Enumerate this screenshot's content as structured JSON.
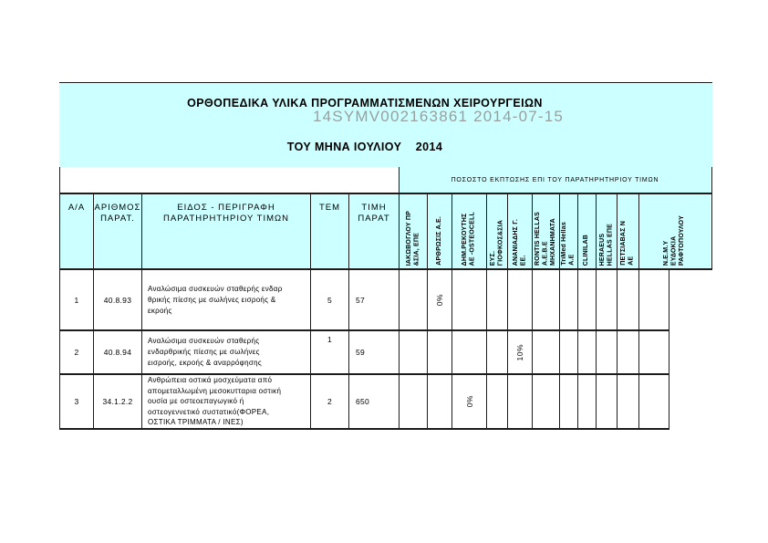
{
  "page": {
    "title_line1": "ΟΡΘΟΠΕΔΙΚΑ ΥΛΙΚΑ ΠΡΟΓΡΑΜΜΑΤΙΣΜΕΝΩΝ ΧΕΙΡΟΥΡΓΕΙΩΝ",
    "title_line2": "ΤΟΥ ΜΗΝΑ ΙΟΥΛΙΟΥ    2014",
    "watermark": "14SYMV002163861 2014-07-15"
  },
  "banner": {
    "discount_header": "ΠΟΣΟΣΤΟ ΕΚΠΤΩΣΗΣ ΕΠΙ ΤΟΥ ΠΑΡΑΤΗΡΗΤΗΡΙΟΥ ΤΙΜΩΝ"
  },
  "columns": {
    "aa": "Α/Α",
    "code": "ΑΡΙΘΜΟΣ\nΠΑΡΑΤ.",
    "item": "ΕΙΔΟΣ - ΠΕΡΙΓΡΑΦΗ\nΠΑΡΑΤΗΡΗΤΗΡΙΟΥ ΤΙΜΩΝ",
    "qty": "ΤΕΜ",
    "price": "ΤΙΜΗ\nΠΑΡΑΤ"
  },
  "suppliers": [
    "ΙΑΚΩΒΟΓΛΟΥ ΠΡ\n&ΣΙΑ, ΕΠΕ",
    "ΑΡΘΡΩΣΙΣ Α.Ε.",
    "ΔΗΜ.ΡΕΚΟΥΤΗΣ\nΑΕ -OSTEOCELL",
    "ΕΥΣ.\nΓΙΟΦΚΟΣ&ΣΙΑ",
    "ΑΝΑΝΙΑΔΗΣ Γ.\nΕΕ.",
    "RONTIS HELLAS\nΑ.Ε.Β.Ε\nΜΗΧΑΝΗΜΑΤΑ",
    "TriMed Hellas\nΑ.Ε",
    "CLINILAB",
    "HERAEUS\nHELLAS ΕΠΕ",
    "ΠΕΤΣΙΑΒΑΣ Ν\nΑΕ",
    "Ν.Ε.Μ.Υ\nΕΥΔΟΚΙΑ\nΡΑΦΤΟΠΟΥΛΟΥ"
  ],
  "rows": [
    {
      "aa": "1",
      "code": "40.8.93",
      "desc": "Αναλώσιμα συσκευών σταθερής ενδαρ\nθρικής πίεσης με σωλήνες εισροής &\nεκροής",
      "qty": "5",
      "price": "57",
      "discounts": {
        "c2": "0%"
      }
    },
    {
      "aa": "2",
      "code": "40.8.94",
      "desc": "Αναλώσιμα συσκευών σταθερής\nενδαρθρικής πίεσης με σωλήνες\nεισροής, εκροής & αναρρόφησης",
      "qty": "1",
      "price": "59",
      "discounts": {
        "c5": "10%"
      }
    },
    {
      "aa": "3",
      "code": "34.1.2.2",
      "desc": "Ανθρώπεια οστικά μοσχεύματα από\nαπομεταλλωμένη μεσοκυτταρια οστική\nουσία με οστεοεπαγωγικό ή\nοστεογεννετικό συστατικό(ΦΟΡΕΑ,\nΟΣΤΙΚΑ ΤΡΙΜΜΑΤΑ / ΙΝΕΣ)",
      "qty": "2",
      "price": "650",
      "discounts": {
        "c3": "0%"
      }
    }
  ],
  "colors": {
    "header_bg": "#ccffff",
    "grid_line": "#1c1c1c",
    "watermark_gray": "#8f8f8f"
  }
}
